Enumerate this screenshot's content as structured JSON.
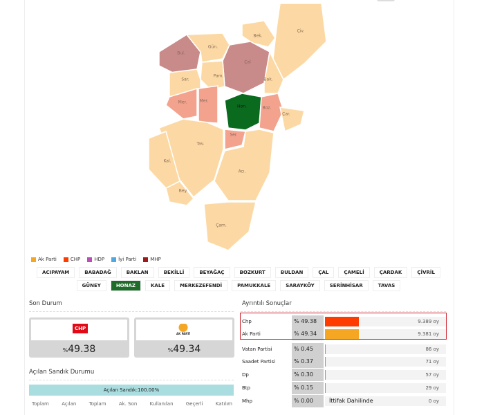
{
  "map": {
    "labels": [
      "Bek.",
      "Çiv.",
      "Bul.",
      "Gün.",
      "Çal",
      "Pam.",
      "Sar.",
      "Bak.",
      "Mer.",
      "Mer.",
      "Hon.",
      "Boz.",
      "Çar.",
      "Ser.",
      "Tav.",
      "Kal.",
      "Bey.",
      "Acı.",
      "Çam."
    ],
    "legend": [
      {
        "name": "Ak Parti",
        "color": "#f5a623"
      },
      {
        "name": "CHP",
        "color": "#ff3c00"
      },
      {
        "name": "HDP",
        "color": "#b94fb5"
      },
      {
        "name": "İyi Parti",
        "color": "#4fa9e0"
      },
      {
        "name": "MHP",
        "color": "#9b1b1b"
      }
    ]
  },
  "districts": [
    "ACIPAYAM",
    "BABADAĞ",
    "BAKLAN",
    "BEKİLLİ",
    "BEYAĞAÇ",
    "BOZKURT",
    "BULDAN",
    "ÇAL",
    "ÇAMELİ",
    "ÇARDAK",
    "ÇİVRİL",
    "GÜNEY",
    "HONAZ",
    "KALE",
    "MERKEZEFENDİ",
    "PAMUKKALE",
    "SARAYKÖY",
    "SERİNHİSAR",
    "TAVAS"
  ],
  "active_district": 12,
  "summary": {
    "title": "Son Durum",
    "percent_sign": "%",
    "cards": [
      {
        "party": "CHP",
        "value": 49.38
      },
      {
        "party": "AK PARTİ",
        "value": 49.34
      }
    ]
  },
  "ballots": {
    "title": "Açılan Sandık Durumu",
    "progress_label": "Açılan Sandık:100.00%",
    "columns": [
      "Toplam",
      "Açılan",
      "Toplam",
      "Ak. Son",
      "Kullanılan",
      "Geçerli",
      "Katılım"
    ]
  },
  "details": {
    "title": "Ayrıntılı Sonuçlar",
    "rows": [
      {
        "party": "Chp",
        "percent": 49.38,
        "percent_label": "% 49.38",
        "color": "#ff3c00",
        "votes": "9.389 oy"
      },
      {
        "party": "Ak Parti",
        "percent": 49.34,
        "percent_label": "% 49.34",
        "color": "#f5a623",
        "votes": "9.381 oy"
      },
      {
        "party": "Vatan Partisi",
        "percent": 0.45,
        "percent_label": "% 0.45",
        "color": "#999999",
        "votes": "86 oy"
      },
      {
        "party": "Saadet Partisi",
        "percent": 0.37,
        "percent_label": "% 0.37",
        "color": "#999999",
        "votes": "71 oy"
      },
      {
        "party": "Dp",
        "percent": 0.3,
        "percent_label": "% 0.30",
        "color": "#999999",
        "votes": "57 oy"
      },
      {
        "party": "Btp",
        "percent": 0.15,
        "percent_label": "% 0.15",
        "color": "#999999",
        "votes": "29 oy"
      },
      {
        "party": "Mhp",
        "percent": 0.0,
        "percent_label": "% 0.00",
        "color": "#999999",
        "votes": "0 oy",
        "note": "İttifak Dahilinde"
      }
    ]
  }
}
